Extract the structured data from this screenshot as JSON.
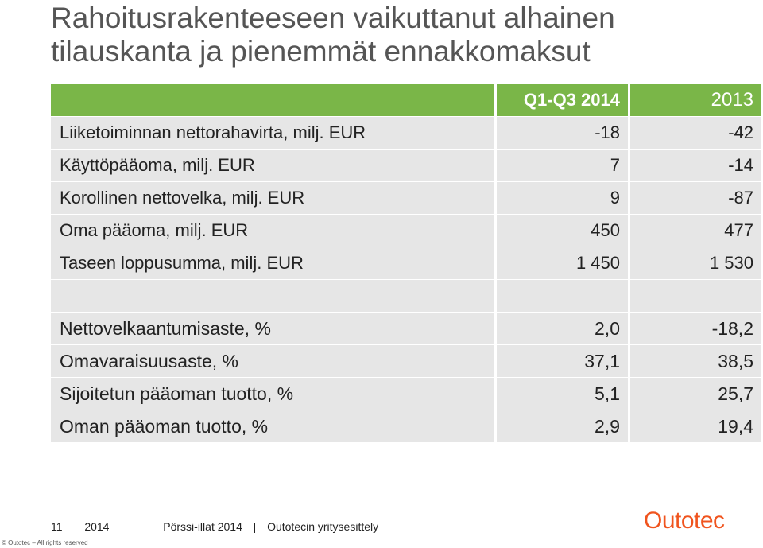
{
  "title": "Rahoitusrakenteeseen vaikuttanut alhainen tilauskanta ja pienemmät ennakkomaksut",
  "table": {
    "header": [
      "",
      "Q1-Q3 2014",
      "2013"
    ],
    "rows": [
      [
        "Liiketoiminnan nettorahavirta, milj. EUR",
        "-18",
        "-42"
      ],
      [
        "Käyttöpääoma, milj. EUR",
        "7",
        "-14"
      ],
      [
        "Korollinen nettovelka, milj. EUR",
        "9",
        "-87"
      ],
      [
        "Oma pääoma, milj. EUR",
        "450",
        "477"
      ],
      [
        "Taseen loppusumma, milj. EUR",
        "1 450",
        "1 530"
      ],
      [
        "",
        "",
        ""
      ],
      [
        "Nettovelkaantumisaste, %",
        "2,0",
        "-18,2"
      ],
      [
        "Omavaraisuusaste, %",
        "37,1",
        "38,5"
      ],
      [
        "Sijoitetun pääoman tuotto, %",
        "5,1",
        "25,7"
      ],
      [
        "Oman pääoman tuotto, %",
        "2,9",
        "19,4"
      ]
    ]
  },
  "footer": {
    "page": "11",
    "year": "2014",
    "event": "Pörssi-illat 2014",
    "separator": "|",
    "subtitle": "Outotecin yritysesittely",
    "copyright": "© Outotec – All rights reserved"
  },
  "logo": "Outotec"
}
